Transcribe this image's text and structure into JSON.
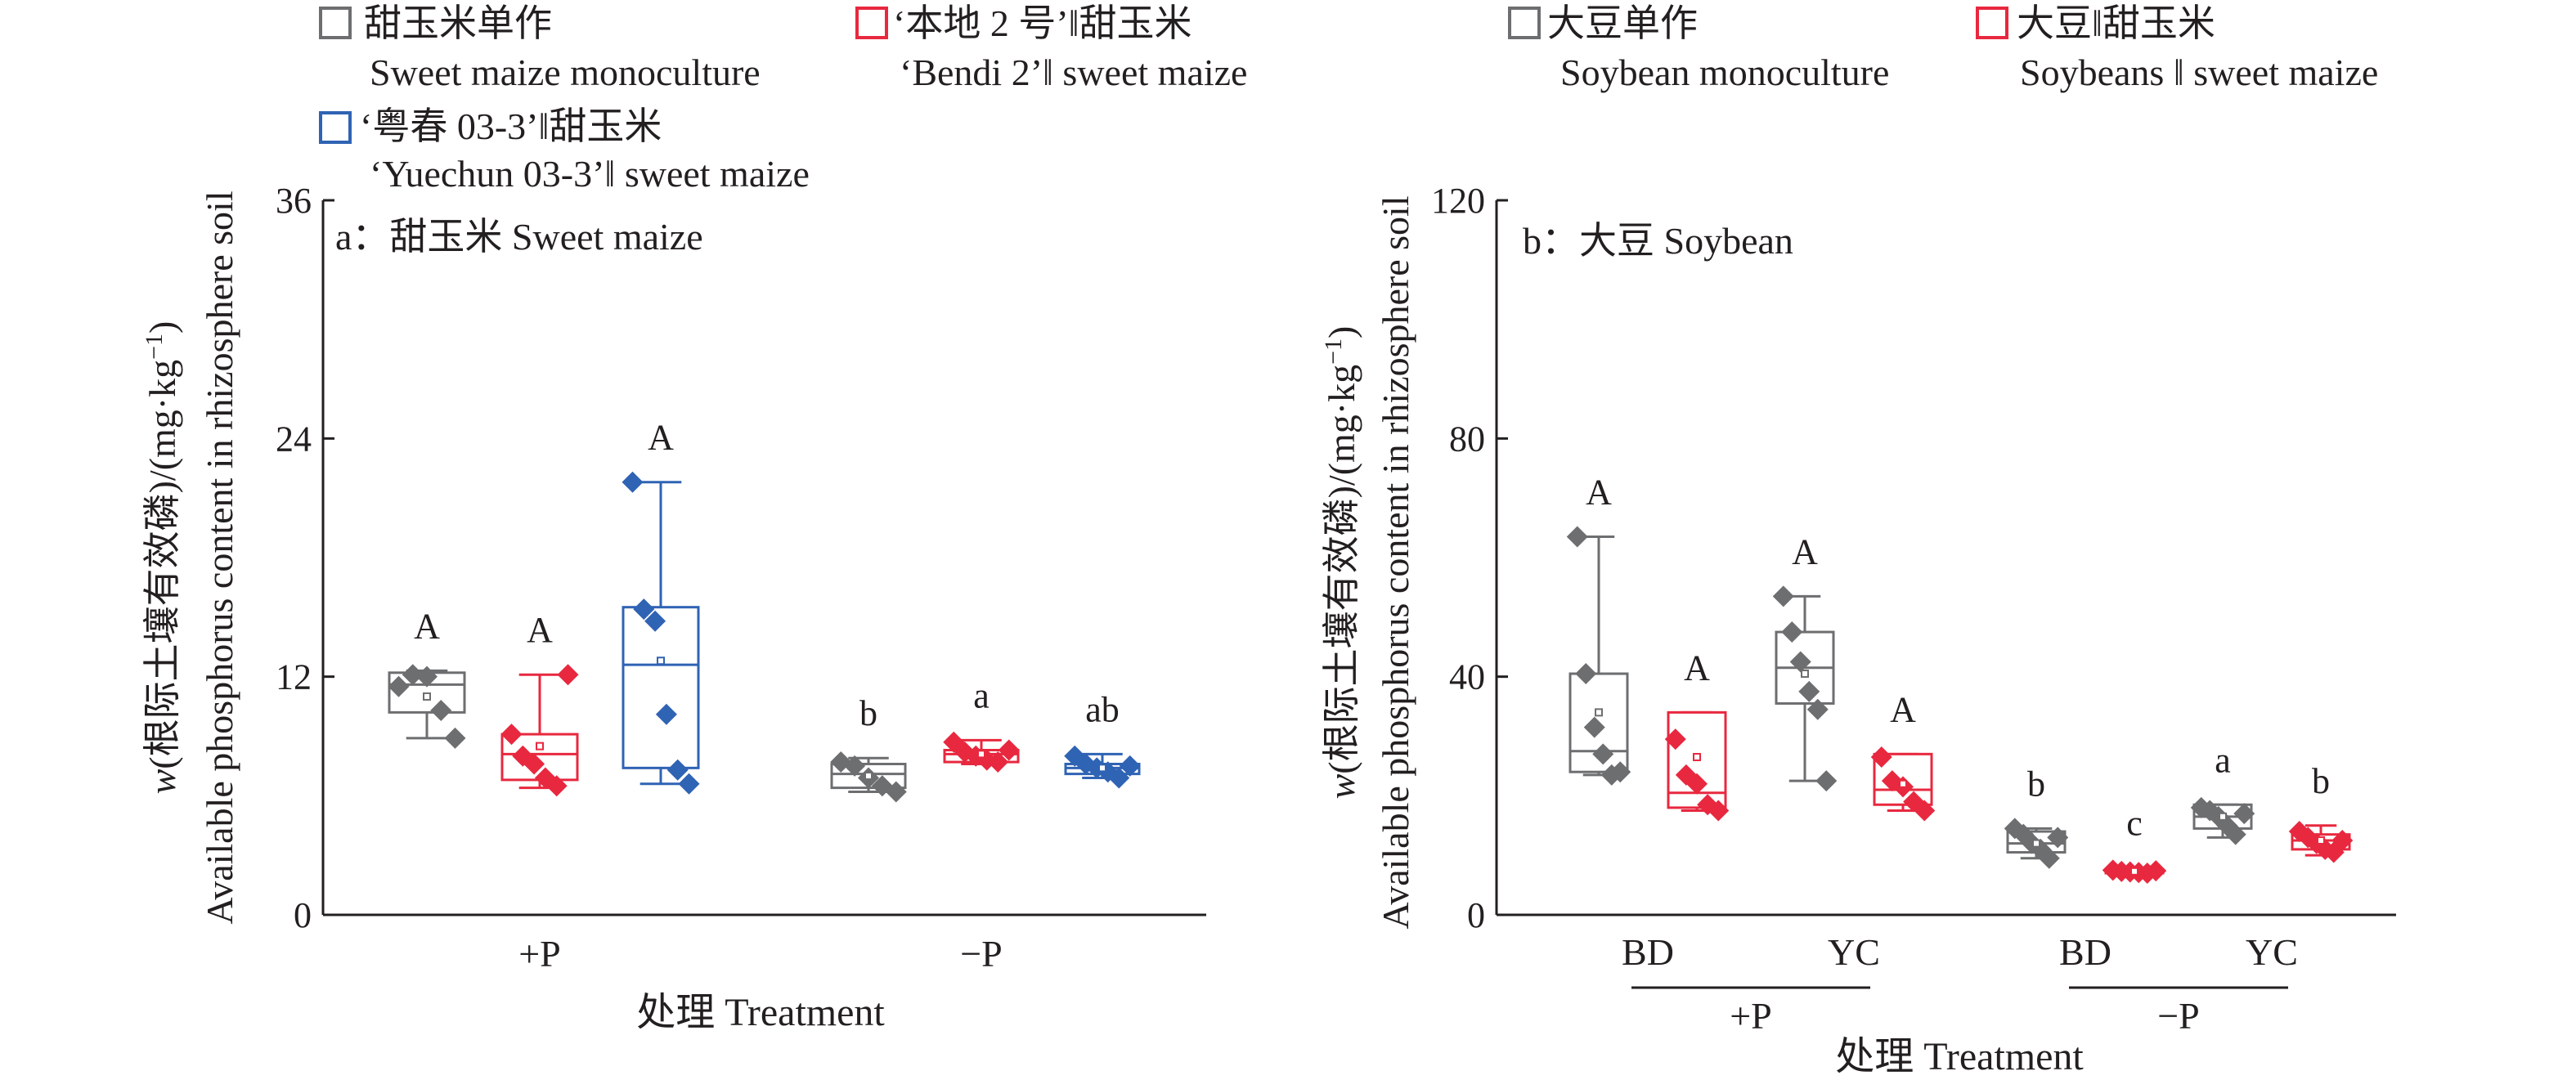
{
  "colors": {
    "sweet_mono": "#6d6e70",
    "bendi": "#e8283f",
    "yuechun": "#2f63b4",
    "axis": "#231f20"
  },
  "legend_a": [
    {
      "key": "sweet_mono",
      "zh": "甜玉米单作",
      "en": "Sweet maize monoculture"
    },
    {
      "key": "bendi",
      "zh": "‘本地 2 号’‖甜玉米",
      "en": "‘Bendi 2’‖ sweet maize"
    },
    {
      "key": "yuechun",
      "zh": "‘粤春 03-3’‖甜玉米",
      "en": "‘Yuechun 03-3’‖ sweet maize"
    }
  ],
  "legend_b": [
    {
      "key": "sweet_mono",
      "zh": "大豆单作",
      "en": "Soybean monoculture"
    },
    {
      "key": "bendi",
      "zh": "大豆‖甜玉米",
      "en": "Soybeans ‖ sweet maize"
    }
  ],
  "shared": {
    "ylabel_zh": "w(根际土壤有效磷)/(mg·kg",
    "ylabel_zh_sup": "−1",
    "ylabel_zh_end": ")",
    "ylabel_en": "Available phosphorus content in rhizosphere soil",
    "xlabel": "处理 Treatment"
  },
  "chart_data": [
    {
      "type": "box",
      "panel_label": "a：甜玉米 Sweet maize",
      "ylim": [
        0,
        36
      ],
      "yticks": [
        "0",
        "12",
        "24",
        "36"
      ],
      "groups": [
        "+P",
        "−P"
      ],
      "boxes": [
        {
          "group": 0,
          "slot": 0,
          "series": "sweet_mono",
          "min": 8.9,
          "q1": 10.2,
          "median": 11.6,
          "q3": 12.2,
          "max": 12.3,
          "mean": 11.0,
          "points": [
            11.5,
            12.1,
            12.0,
            10.3,
            8.9
          ],
          "letter": "A"
        },
        {
          "group": 0,
          "slot": 1,
          "series": "bendi",
          "min": 6.4,
          "q1": 6.8,
          "median": 8.1,
          "q3": 9.1,
          "max": 12.1,
          "mean": 8.5,
          "points": [
            9.1,
            8.0,
            7.6,
            6.9,
            6.5,
            12.1
          ],
          "letter": "A"
        },
        {
          "group": 0,
          "slot": 2,
          "series": "yuechun",
          "min": 6.6,
          "q1": 7.4,
          "median": 12.6,
          "q3": 15.5,
          "max": 21.8,
          "mean": 12.8,
          "points": [
            21.8,
            15.4,
            14.8,
            10.1,
            7.3,
            6.6
          ],
          "letter": "A"
        },
        {
          "group": 1,
          "slot": 0,
          "series": "sweet_mono",
          "min": 6.2,
          "q1": 6.4,
          "median": 7.1,
          "q3": 7.6,
          "max": 7.9,
          "mean": 7.0,
          "points": [
            7.7,
            7.5,
            6.9,
            6.5,
            6.2
          ],
          "letter": "b"
        },
        {
          "group": 1,
          "slot": 1,
          "series": "bendi",
          "min": 7.6,
          "q1": 7.7,
          "median": 8.1,
          "q3": 8.3,
          "max": 8.8,
          "mean": 8.1,
          "points": [
            8.7,
            8.2,
            8.0,
            7.8,
            7.7,
            8.3
          ],
          "letter": "a"
        },
        {
          "group": 1,
          "slot": 2,
          "series": "yuechun",
          "min": 6.9,
          "q1": 7.1,
          "median": 7.4,
          "q3": 7.6,
          "max": 8.1,
          "mean": 7.4,
          "points": [
            8.0,
            7.6,
            7.4,
            7.2,
            6.9,
            7.5
          ],
          "letter": "ab"
        }
      ]
    },
    {
      "type": "box",
      "panel_label": "b：大豆 Soybean",
      "ylim": [
        0,
        120
      ],
      "yticks": [
        "0",
        "40",
        "80",
        "120"
      ],
      "groups": [
        "+P",
        "−P"
      ],
      "subcategories": [
        "BD",
        "YC",
        "BD",
        "YC"
      ],
      "boxes": [
        {
          "sub": 0,
          "series": "sweet_mono",
          "min": 23.5,
          "q1": 24.0,
          "median": 27.5,
          "q3": 40.5,
          "max": 63.5,
          "mean": 34.0,
          "points": [
            63.5,
            40.5,
            31.5,
            27.0,
            23.5,
            24.0
          ],
          "letter": "A"
        },
        {
          "sub": 0,
          "series": "bendi",
          "min": 17.5,
          "q1": 18.0,
          "median": 20.5,
          "q3": 34.0,
          "max": 34.0,
          "mean": 26.5,
          "points": [
            29.5,
            23.5,
            22.0,
            18.5,
            17.5
          ],
          "letter": "A"
        },
        {
          "sub": 1,
          "series": "sweet_mono",
          "min": 22.5,
          "q1": 35.5,
          "median": 41.5,
          "q3": 47.5,
          "max": 53.5,
          "mean": 40.5,
          "points": [
            53.5,
            47.5,
            42.5,
            37.5,
            34.5,
            22.5
          ],
          "letter": "A"
        },
        {
          "sub": 1,
          "series": "bendi",
          "min": 17.5,
          "q1": 18.5,
          "median": 21.0,
          "q3": 27.0,
          "max": 27.0,
          "mean": 22.0,
          "points": [
            26.5,
            22.5,
            21.5,
            19.0,
            17.5
          ],
          "letter": "A"
        },
        {
          "sub": 2,
          "series": "sweet_mono",
          "min": 9.5,
          "q1": 10.5,
          "median": 12.0,
          "q3": 14.0,
          "max": 14.5,
          "mean": 12.0,
          "points": [
            14.5,
            13.5,
            12.0,
            11.0,
            9.5,
            13.0
          ],
          "letter": "b"
        },
        {
          "sub": 2,
          "series": "bendi",
          "min": 6.8,
          "q1": 7.0,
          "median": 7.3,
          "q3": 7.6,
          "max": 7.9,
          "mean": 7.3,
          "points": [
            7.5,
            7.3,
            7.2,
            7.1,
            7.0,
            7.4
          ],
          "letter": "c"
        },
        {
          "sub": 3,
          "series": "sweet_mono",
          "min": 13.0,
          "q1": 14.5,
          "median": 16.5,
          "q3": 18.5,
          "max": 18.5,
          "mean": 16.5,
          "points": [
            18.0,
            17.5,
            16.5,
            15.0,
            13.5,
            17.0
          ],
          "letter": "a"
        },
        {
          "sub": 3,
          "series": "bendi",
          "min": 10.0,
          "q1": 11.0,
          "median": 12.5,
          "q3": 13.5,
          "max": 15.0,
          "mean": 12.5,
          "points": [
            14.0,
            13.0,
            12.0,
            11.0,
            10.5,
            12.5
          ],
          "letter": "b"
        }
      ]
    }
  ]
}
